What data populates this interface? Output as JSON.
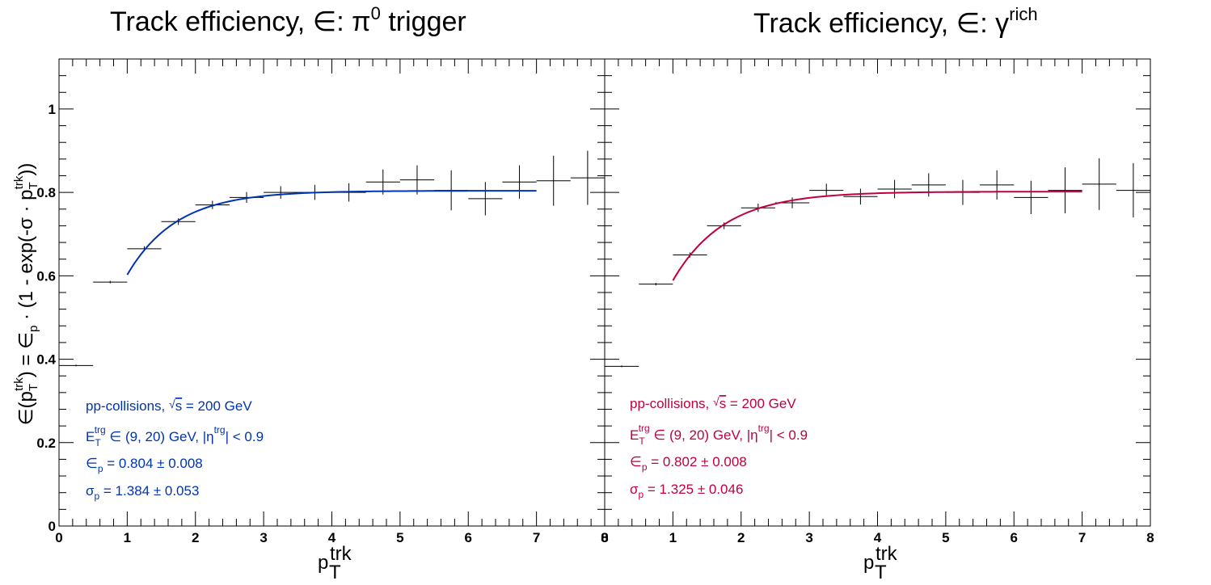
{
  "chart_data": [
    {
      "type": "scatter",
      "title": "Track efficiency, ∈: π⁰ trigger",
      "title_text": "Track efficiency, ∈: π",
      "title_sup": "0",
      "title_tail": " trigger",
      "xlabel": "p",
      "xlabel_sup": "trk",
      "xlabel_sub": "T",
      "ylabel": "∈(pᵀᵗʳᵏ) = ∈ₚ · (1 - exp(-σ · pᵀᵗʳᵏ))",
      "xlim": [
        0,
        8
      ],
      "ylim": [
        0,
        1.12
      ],
      "x_ticks": [
        "0",
        "1",
        "2",
        "3",
        "4",
        "5",
        "6",
        "7",
        "8"
      ],
      "y_ticks": [
        "0",
        "0.2",
        "0.4",
        "0.6",
        "0.8",
        "1"
      ],
      "accent_color": "#0033b3",
      "points": [
        {
          "x": 0.25,
          "xerr": 0.25,
          "y": 0.385,
          "yerr": 0.002
        },
        {
          "x": 0.75,
          "xerr": 0.25,
          "y": 0.585,
          "yerr": 0.003
        },
        {
          "x": 1.25,
          "xerr": 0.25,
          "y": 0.665,
          "yerr": 0.006
        },
        {
          "x": 1.75,
          "xerr": 0.25,
          "y": 0.73,
          "yerr": 0.008
        },
        {
          "x": 2.25,
          "xerr": 0.25,
          "y": 0.77,
          "yerr": 0.01
        },
        {
          "x": 2.75,
          "xerr": 0.25,
          "y": 0.788,
          "yerr": 0.013
        },
        {
          "x": 3.25,
          "xerr": 0.25,
          "y": 0.8,
          "yerr": 0.015
        },
        {
          "x": 3.75,
          "xerr": 0.25,
          "y": 0.8,
          "yerr": 0.018
        },
        {
          "x": 4.25,
          "xerr": 0.25,
          "y": 0.8,
          "yerr": 0.022
        },
        {
          "x": 4.75,
          "xerr": 0.25,
          "y": 0.825,
          "yerr": 0.03
        },
        {
          "x": 5.25,
          "xerr": 0.25,
          "y": 0.83,
          "yerr": 0.035
        },
        {
          "x": 5.75,
          "xerr": 0.25,
          "y": 0.805,
          "yerr": 0.048
        },
        {
          "x": 6.25,
          "xerr": 0.25,
          "y": 0.785,
          "yerr": 0.04
        },
        {
          "x": 6.75,
          "xerr": 0.25,
          "y": 0.825,
          "yerr": 0.04
        },
        {
          "x": 7.25,
          "xerr": 0.25,
          "y": 0.828,
          "yerr": 0.06
        },
        {
          "x": 7.75,
          "xerr": 0.25,
          "y": 0.835,
          "yerr": 0.065
        }
      ],
      "fit": {
        "epsilon_p": 0.804,
        "sigma_p": 1.384,
        "x_range": [
          1.0,
          7.0
        ]
      },
      "annotations": {
        "line1": "pp-collisions, √s = 200 GeV",
        "line2": "Eᵀᵗʳᵍ ∈ (9, 20) GeV, |ηᵗʳᵍ| < 0.9",
        "line3": "∈ₚ = 0.804 ± 0.008",
        "line4": "σₚ = 1.384 ± 0.053"
      }
    },
    {
      "type": "scatter",
      "title": "Track efficiency, ∈: γʳⁱᶜʰ",
      "title_text": "Track efficiency, ∈: γ",
      "title_sup": "rich",
      "title_tail": "",
      "xlabel": "p",
      "xlabel_sup": "trk",
      "xlabel_sub": "T",
      "xlim": [
        0,
        8
      ],
      "ylim": [
        0,
        1.12
      ],
      "x_ticks": [
        "0",
        "1",
        "2",
        "3",
        "4",
        "5",
        "6",
        "7",
        "8"
      ],
      "accent_color": "#c0003c",
      "points": [
        {
          "x": 0.25,
          "xerr": 0.25,
          "y": 0.383,
          "yerr": 0.002
        },
        {
          "x": 0.75,
          "xerr": 0.25,
          "y": 0.58,
          "yerr": 0.003
        },
        {
          "x": 1.25,
          "xerr": 0.25,
          "y": 0.65,
          "yerr": 0.006
        },
        {
          "x": 1.75,
          "xerr": 0.25,
          "y": 0.72,
          "yerr": 0.008
        },
        {
          "x": 2.25,
          "xerr": 0.25,
          "y": 0.763,
          "yerr": 0.01
        },
        {
          "x": 2.75,
          "xerr": 0.25,
          "y": 0.775,
          "yerr": 0.013
        },
        {
          "x": 3.25,
          "xerr": 0.25,
          "y": 0.805,
          "yerr": 0.016
        },
        {
          "x": 3.75,
          "xerr": 0.25,
          "y": 0.79,
          "yerr": 0.019
        },
        {
          "x": 4.25,
          "xerr": 0.25,
          "y": 0.808,
          "yerr": 0.022
        },
        {
          "x": 4.75,
          "xerr": 0.25,
          "y": 0.818,
          "yerr": 0.028
        },
        {
          "x": 5.25,
          "xerr": 0.25,
          "y": 0.8,
          "yerr": 0.03
        },
        {
          "x": 5.75,
          "xerr": 0.25,
          "y": 0.818,
          "yerr": 0.035
        },
        {
          "x": 6.25,
          "xerr": 0.25,
          "y": 0.788,
          "yerr": 0.04
        },
        {
          "x": 6.75,
          "xerr": 0.25,
          "y": 0.805,
          "yerr": 0.055
        },
        {
          "x": 7.25,
          "xerr": 0.25,
          "y": 0.82,
          "yerr": 0.062
        },
        {
          "x": 7.75,
          "xerr": 0.25,
          "y": 0.805,
          "yerr": 0.065
        }
      ],
      "fit": {
        "epsilon_p": 0.802,
        "sigma_p": 1.325,
        "x_range": [
          1.0,
          7.0
        ]
      },
      "annotations": {
        "line1": "pp-collisions, √s = 200 GeV",
        "line2": "Eᵀᵗʳᵍ ∈ (9, 20) GeV, |ηᵗʳᵍ| < 0.9",
        "line3": "∈ₚ = 0.802 ± 0.008",
        "line4": "σₚ = 1.325 ± 0.046"
      }
    }
  ]
}
